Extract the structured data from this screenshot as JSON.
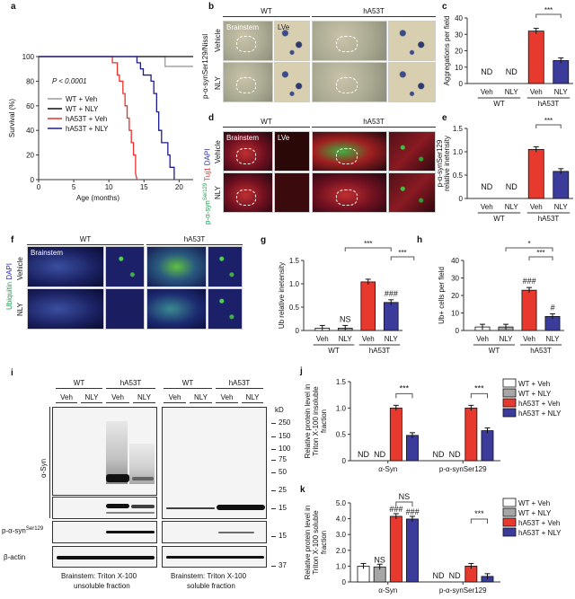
{
  "panels": {
    "a": {
      "letter": "a"
    },
    "b": {
      "letter": "b",
      "ylabel": "p-α-synSer129/Nissl",
      "headers": [
        "WT",
        "hA53T"
      ],
      "rows": [
        "Vehicle",
        "NLY"
      ],
      "regions": [
        "Brainstem",
        "LVe"
      ]
    },
    "c": {
      "letter": "c"
    },
    "d": {
      "letter": "d",
      "ylabel_parts": [
        "p-α-syn",
        "Ser129",
        " Tuj1",
        " DAPI"
      ],
      "headers": [
        "WT",
        "hA53T"
      ],
      "rows": [
        "Vehicle",
        "NLY"
      ],
      "regions": [
        "Brainstem",
        "LVe"
      ]
    },
    "e": {
      "letter": "e"
    },
    "f": {
      "letter": "f",
      "ylabel_parts": [
        "Ubiquitin",
        " DAPI"
      ],
      "headers": [
        "WT",
        "hA53T"
      ],
      "rows": [
        "Vehicle",
        "NLY"
      ],
      "regions": [
        "Brainstem"
      ]
    },
    "g": {
      "letter": "g"
    },
    "h": {
      "letter": "h"
    },
    "i": {
      "letter": "i",
      "group_headers": [
        "WT",
        "hA53T",
        "WT",
        "hA53T"
      ],
      "lane_headers": [
        "Veh",
        "NLY",
        "Veh",
        "NLY",
        "Veh",
        "NLY",
        "Veh",
        "NLY"
      ],
      "row_labels": {
        "asyn": "α-Syn",
        "psyn": "p-α-syn",
        "psyn_sup": "Ser129",
        "actin": "β-actin"
      },
      "kd_unit": "kD",
      "kd_markers": [
        "250",
        "150",
        "100",
        "75",
        "50",
        "25",
        "15",
        "15",
        "37"
      ],
      "footers": [
        "Brainstem: Triton X-100",
        "unsoluble fraction",
        "Brainstem: Triton X-100",
        "soluble fraction"
      ]
    },
    "j": {
      "letter": "j"
    },
    "k": {
      "letter": "k"
    }
  },
  "colors": {
    "wt_veh": "#ffffff",
    "wt_nly": "#a6a6a6",
    "ha53t_veh": "#e8392e",
    "ha53t_nly": "#3b3b9c",
    "surv_wt_veh": "#9a9a9a",
    "surv_wt_nly": "#111111",
    "surv_ha53t_veh": "#e8302a",
    "surv_ha53t_nly": "#1c1c8e"
  },
  "chart_data": [
    {
      "type": "line",
      "panel": "a",
      "xlabel": "Age (months)",
      "ylabel": "Survival (%)",
      "xlim": [
        0,
        22
      ],
      "ylim": [
        0,
        100
      ],
      "xticks": [
        0,
        5,
        10,
        15,
        20
      ],
      "yticks": [
        0,
        20,
        40,
        60,
        80,
        100
      ],
      "annotation": "P < 0.0001",
      "legend": "center-left",
      "series": [
        {
          "name": "WT + Veh",
          "x": [
            0,
            18,
            18,
            22
          ],
          "y": [
            100,
            100,
            92,
            92
          ]
        },
        {
          "name": "WT + NLY",
          "x": [
            0,
            22
          ],
          "y": [
            100,
            100
          ]
        },
        {
          "name": "hA53T + Veh",
          "x": [
            0,
            10.5,
            10.5,
            11.2,
            11.2,
            11.5,
            11.5,
            12.0,
            12.0,
            12.3,
            12.3,
            12.6,
            12.6,
            12.9,
            12.9,
            13.2,
            13.2,
            13.5,
            13.5,
            13.8,
            13.8,
            14.0
          ],
          "y": [
            100,
            100,
            95,
            95,
            85,
            85,
            80,
            80,
            70,
            70,
            60,
            60,
            50,
            50,
            40,
            40,
            30,
            30,
            20,
            20,
            5,
            0
          ]
        },
        {
          "name": "hA53T + NLY",
          "x": [
            0,
            14.0,
            14.0,
            14.5,
            14.5,
            14.9,
            14.9,
            16.0,
            16.0,
            16.4,
            16.4,
            16.8,
            16.8,
            17.1,
            17.1,
            17.5,
            17.5,
            18.4,
            18.4,
            18.7,
            18.7,
            19.3,
            19.3
          ],
          "y": [
            100,
            100,
            95,
            95,
            90,
            90,
            85,
            85,
            80,
            80,
            70,
            70,
            55,
            55,
            40,
            40,
            30,
            30,
            20,
            20,
            10,
            10,
            0
          ]
        }
      ]
    },
    {
      "type": "bar",
      "panel": "c",
      "ylabel": "Aggregations per field",
      "ylim": [
        0,
        40
      ],
      "yticks": [
        "0",
        "10",
        "20",
        "30",
        "40"
      ],
      "categories": [
        "Veh",
        "NLY",
        "Veh",
        "NLY"
      ],
      "groups": [
        "WT",
        "hA53T"
      ],
      "values": [
        null,
        null,
        32,
        14
      ],
      "bar_labels": [
        "ND",
        "ND",
        "",
        ""
      ],
      "brackets": [
        {
          "from": 2,
          "to": 3,
          "label": "***"
        }
      ]
    },
    {
      "type": "bar",
      "panel": "e",
      "ylabel": "p-α-synSer129 relative inetensity",
      "ylim": [
        0,
        1.5
      ],
      "yticks": [
        "0",
        "0.5",
        "1.0",
        "1.5"
      ],
      "categories": [
        "Veh",
        "NLY",
        "Veh",
        "NLY"
      ],
      "groups": [
        "WT",
        "hA53T"
      ],
      "values": [
        null,
        null,
        1.05,
        0.58
      ],
      "bar_labels": [
        "ND",
        "ND",
        "",
        ""
      ],
      "brackets": [
        {
          "from": 2,
          "to": 3,
          "label": "***"
        }
      ]
    },
    {
      "type": "bar",
      "panel": "g",
      "ylabel": "Ub relative inetensity",
      "ylim": [
        0,
        1.5
      ],
      "yticks": [
        "0",
        "0.5",
        "1.0",
        "1.5"
      ],
      "categories": [
        "Veh",
        "NLY",
        "Veh",
        "NLY"
      ],
      "groups": [
        "WT",
        "hA53T"
      ],
      "values": [
        0.05,
        0.05,
        1.04,
        0.6
      ],
      "bar_labels": [
        "",
        "NS",
        "",
        "###"
      ],
      "brackets": [
        {
          "from": 3,
          "to": 4,
          "label": "***"
        },
        {
          "from": 1,
          "to": 3,
          "label": "***"
        }
      ]
    },
    {
      "type": "bar",
      "panel": "h",
      "ylabel": "Ub+ cells per field",
      "ylim": [
        0,
        40
      ],
      "yticks": [
        "0",
        "10",
        "20",
        "30",
        "40"
      ],
      "categories": [
        "Veh",
        "NLY",
        "Veh",
        "NLY"
      ],
      "groups": [
        "WT",
        "hA53T"
      ],
      "values": [
        2,
        2,
        23,
        8
      ],
      "bar_labels": [
        "",
        "",
        "###",
        "#"
      ],
      "brackets": [
        {
          "from": 2,
          "to": 3,
          "label": "***"
        },
        {
          "from": 1,
          "to": 3,
          "label": "*"
        }
      ]
    },
    {
      "type": "bar",
      "panel": "j",
      "ylabel": "Relative protein level in Triton X-100 insoluble fraction",
      "ylim": [
        0,
        1.5
      ],
      "yticks": [
        "0",
        "0.5",
        "1.0",
        "1.5"
      ],
      "categories": [
        "α-Syn",
        "p-α-synSer129"
      ],
      "series": [
        {
          "name": "WT + Veh",
          "values": [
            null,
            null
          ],
          "bar_labels": [
            "ND",
            "ND"
          ]
        },
        {
          "name": "WT + NLY",
          "values": [
            null,
            null
          ],
          "bar_labels": [
            "ND",
            "ND"
          ]
        },
        {
          "name": "hA53T + Veh",
          "values": [
            1.0,
            1.0
          ],
          "bar_labels": [
            "",
            ""
          ]
        },
        {
          "name": "hA53T + NLY",
          "values": [
            0.48,
            0.57
          ],
          "bar_labels": [
            "",
            ""
          ]
        }
      ],
      "brackets": [
        {
          "category": 0,
          "from": 2,
          "to": 3,
          "label": "***"
        },
        {
          "category": 1,
          "from": 2,
          "to": 3,
          "label": "***"
        }
      ],
      "legend": "right"
    },
    {
      "type": "bar",
      "panel": "k",
      "ylabel": "Relative protein level in Triton X-100 soluble fraction",
      "ylim": [
        0,
        5
      ],
      "yticks": [
        "0",
        "1.0",
        "2.0",
        "3.0",
        "4.0",
        "5.0"
      ],
      "categories": [
        "α-Syn",
        "p-α-synSer129"
      ],
      "series": [
        {
          "name": "WT + Veh",
          "values": [
            1.0,
            null
          ],
          "bar_labels": [
            "",
            "ND"
          ]
        },
        {
          "name": "WT + NLY",
          "values": [
            0.95,
            null
          ],
          "bar_labels": [
            "NS",
            "ND"
          ]
        },
        {
          "name": "hA53T + Veh",
          "values": [
            4.15,
            1.0
          ],
          "bar_labels": [
            "###",
            ""
          ]
        },
        {
          "name": "hA53T + NLY",
          "values": [
            3.98,
            0.35
          ],
          "bar_labels": [
            "###",
            ""
          ]
        }
      ],
      "brackets": [
        {
          "category": 0,
          "from": 2,
          "to": 3,
          "label": "NS"
        },
        {
          "category": 1,
          "from": 2,
          "to": 3,
          "label": "***"
        }
      ],
      "legend": "right"
    }
  ]
}
